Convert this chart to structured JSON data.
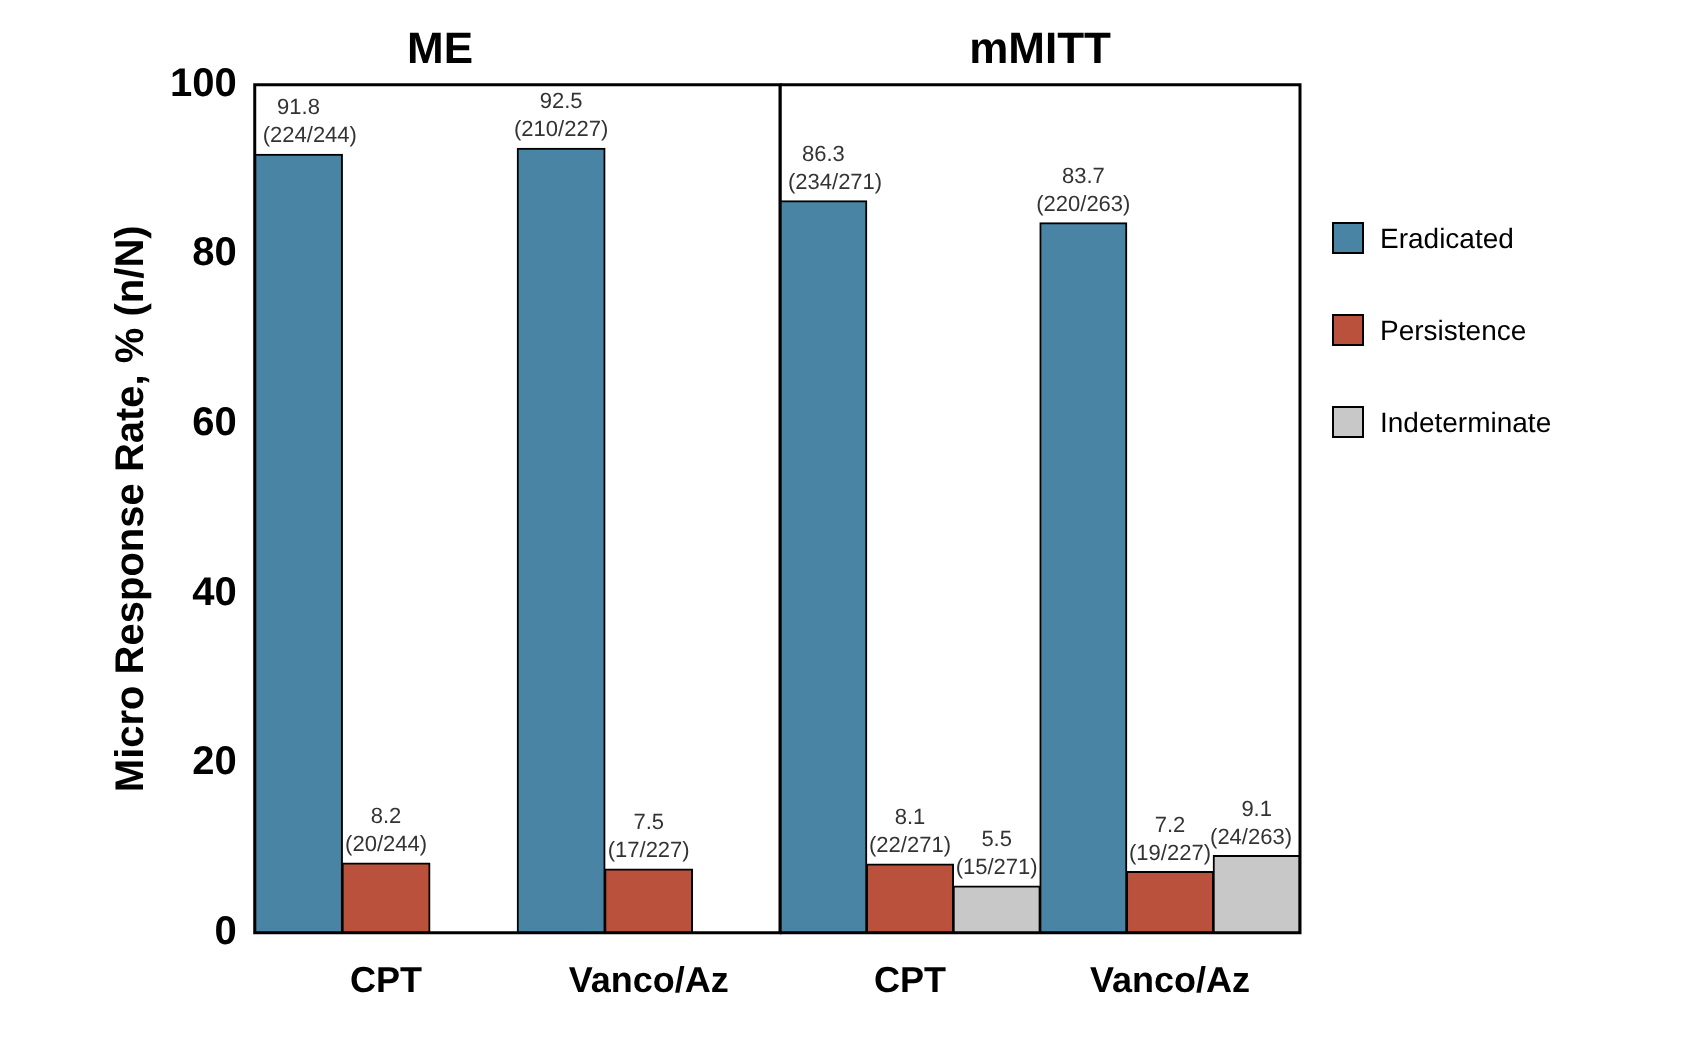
{
  "chart_data": [
    {
      "type": "bar",
      "title": "ME",
      "ylabel": "Micro Response Rate, % (n/N)",
      "categories": [
        "CPT",
        "Vanco/Az"
      ],
      "ylim": [
        0,
        100
      ],
      "yticks": [
        0,
        20,
        40,
        60,
        80,
        100
      ],
      "grid": false,
      "legend": false,
      "series": [
        {
          "color": "#4a84a4",
          "values": [
            91.8,
            92.5
          ],
          "value_labels": [
            "91.8\n(224/244)",
            "92.5\n(210/227)"
          ]
        },
        {
          "color": "#b9513c",
          "values": [
            8.2,
            7.5
          ],
          "value_labels": [
            "8.2\n(20/244)",
            "7.5\n(17/227)"
          ]
        },
        {
          "color": "#c8c8c8",
          "values": [
            null,
            null
          ],
          "value_labels": [
            null,
            null
          ]
        }
      ]
    },
    {
      "type": "bar",
      "title": "mMITT",
      "categories": [
        "CPT",
        "Vanco/Az"
      ],
      "ylim": [
        0,
        100
      ],
      "yticks": [
        0,
        20,
        40,
        60,
        80,
        100
      ],
      "tick_labels": "x",
      "grid": false,
      "legend": "right",
      "series": [
        {
          "name": "Eradicated",
          "color": "#4a84a4",
          "values": [
            86.3,
            83.7
          ],
          "value_labels": [
            "86.3\n(234/271)",
            "83.7\n(220/263)"
          ]
        },
        {
          "name": "Persistence",
          "color": "#b9513c",
          "values": [
            8.1,
            7.2
          ],
          "value_labels": [
            "8.1\n(22/271)",
            "7.2\n(19/227)"
          ]
        },
        {
          "name": "Indeterminate",
          "color": "#c8c8c8",
          "values": [
            5.5,
            9.1
          ],
          "value_labels": [
            "5.5\n(15/271)",
            "9.1\n(24/263)"
          ]
        }
      ]
    }
  ]
}
